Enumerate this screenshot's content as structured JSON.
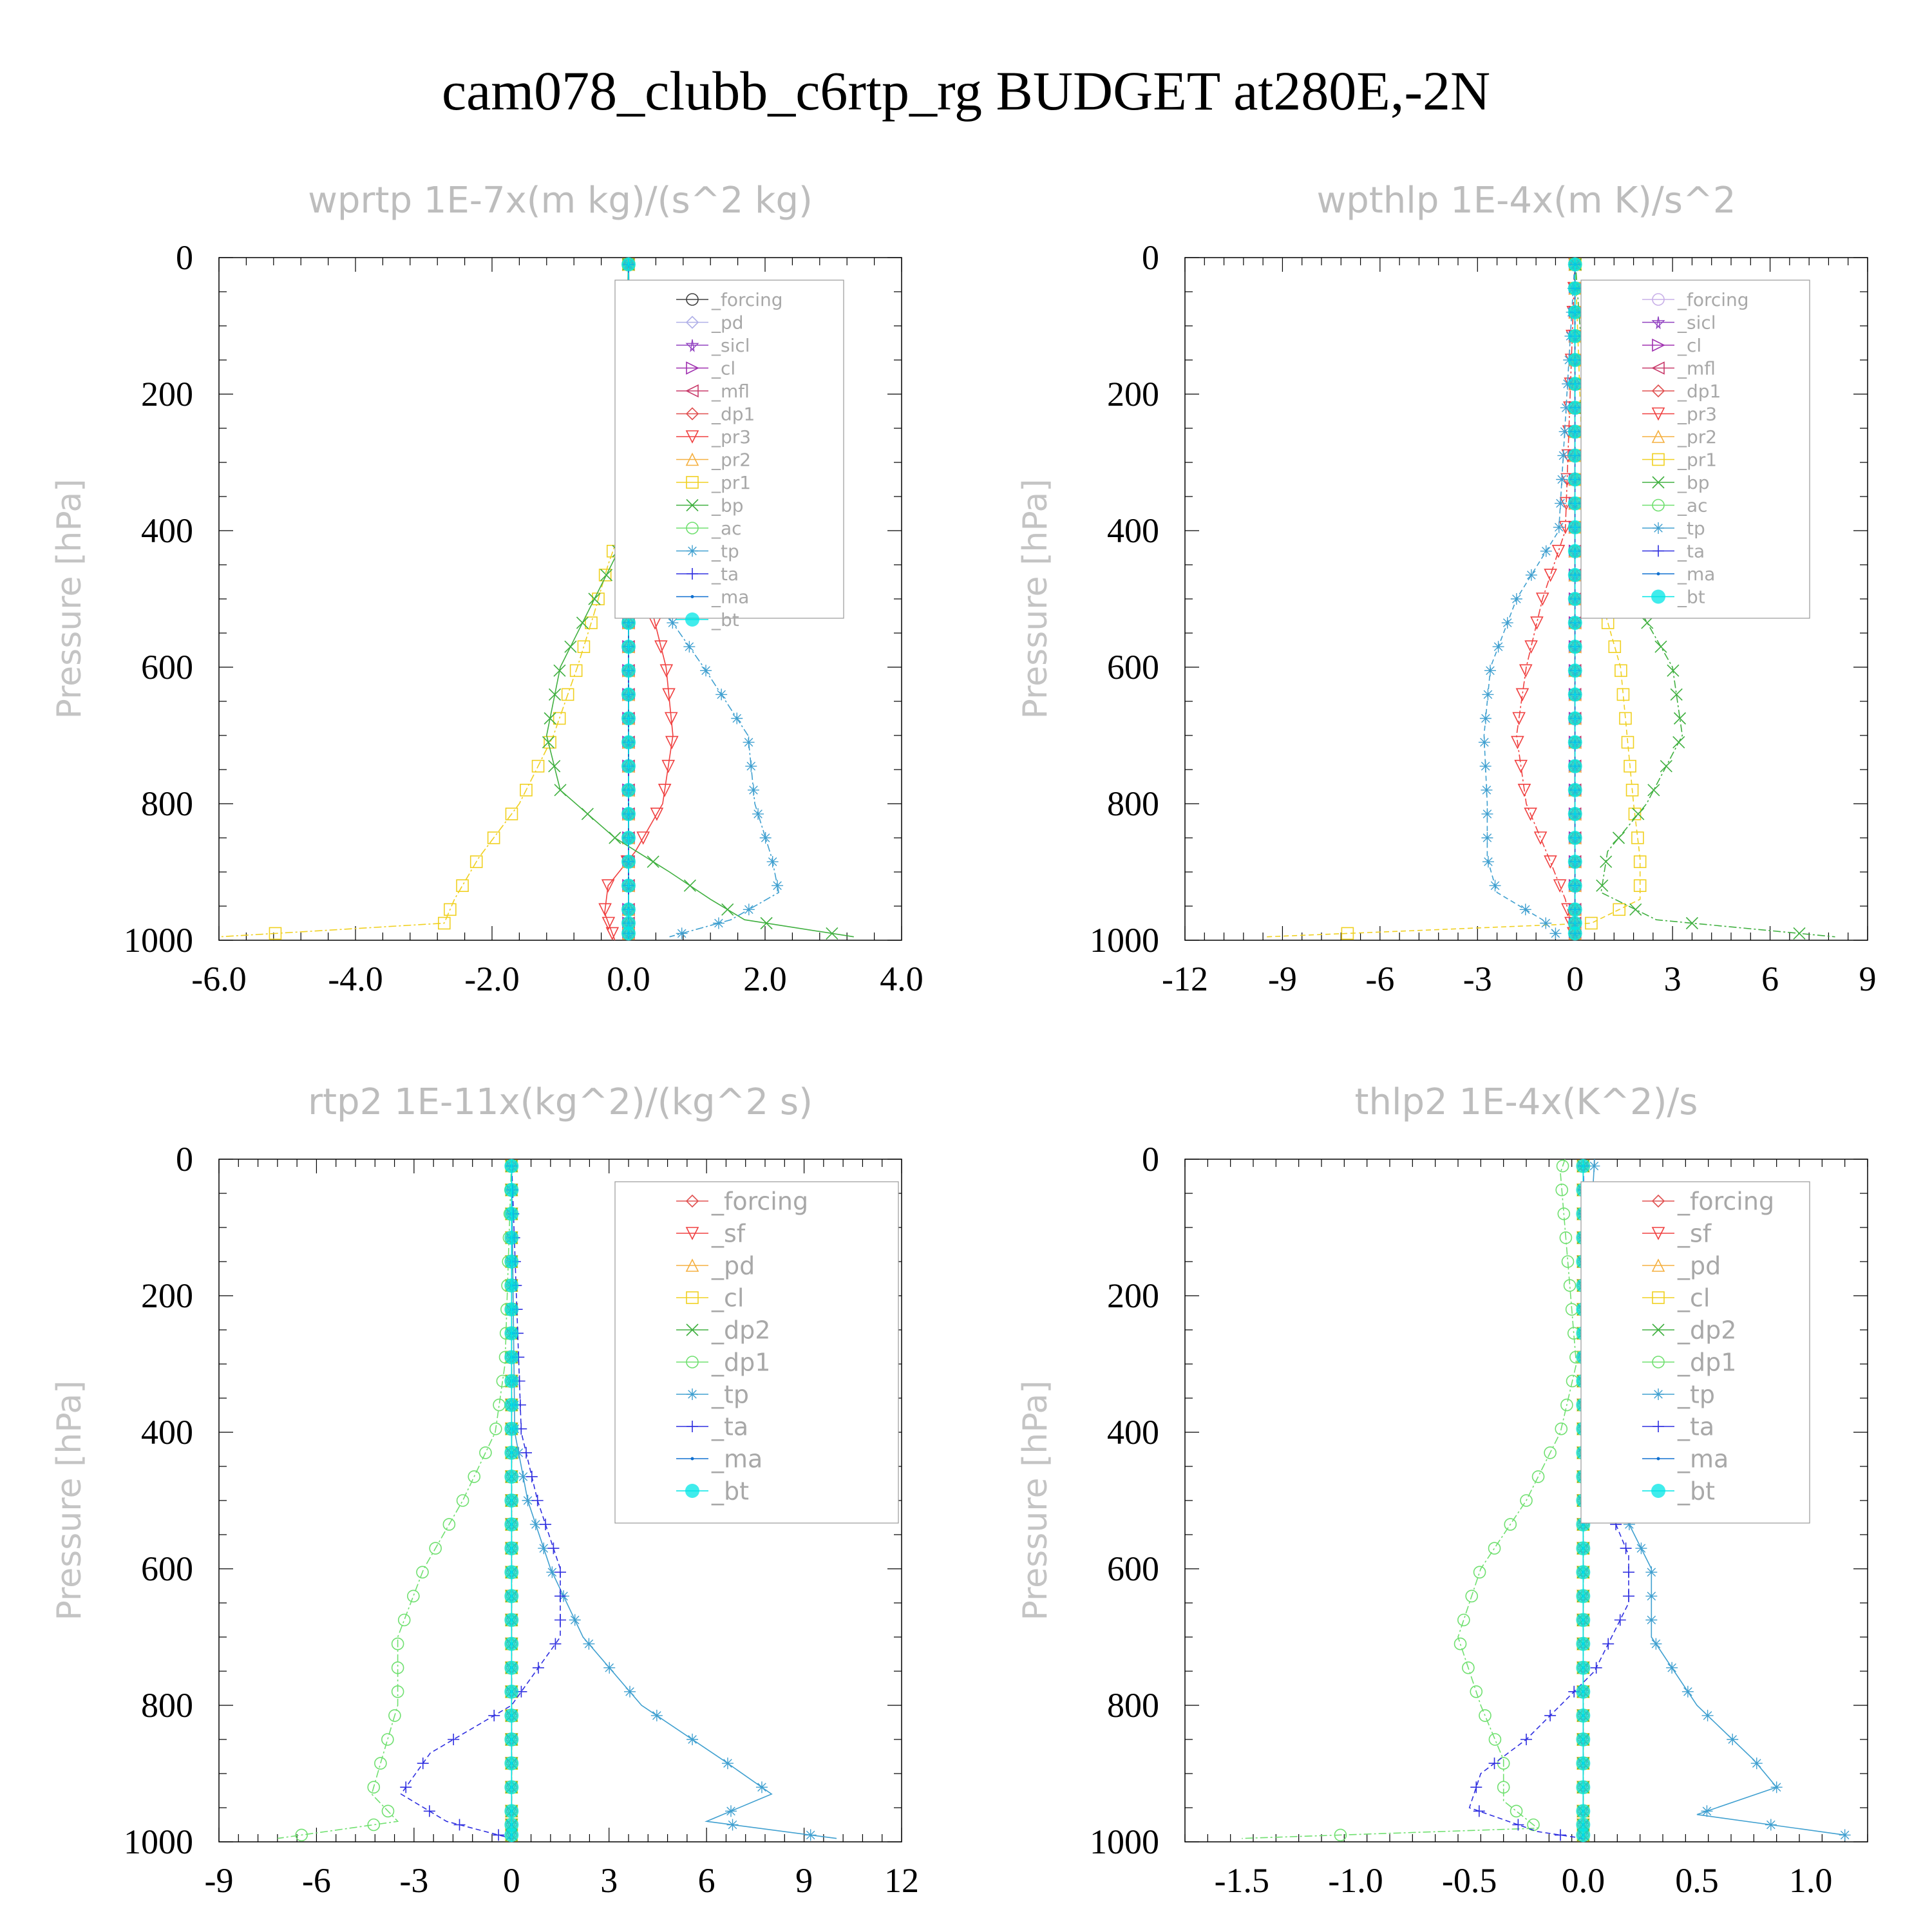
{
  "title": "cam078_clubb_c6rtp_rg  BUDGET at280E,-2N",
  "chart_data": [
    {
      "type": "line",
      "title": "wprtp  1E-7x(m kg)/(s^2 kg)",
      "ylabel": "Pressure [hPa]",
      "xlim": [
        -6.0,
        4.0
      ],
      "ylim": [
        1000,
        0
      ],
      "xticks": [
        "-6.0",
        "-4.0",
        "-2.0",
        "0.0",
        "2.0",
        "4.0"
      ],
      "xtick_values": [
        -6,
        -4,
        -2,
        0,
        2,
        4
      ],
      "yticks": [
        "0",
        "200",
        "400",
        "600",
        "800",
        "1000"
      ],
      "ytick_values": [
        0,
        200,
        400,
        600,
        800,
        1000
      ],
      "legend": "top-right",
      "series": [
        {
          "name": "_forcing",
          "color": "#404040",
          "marker": "circle",
          "p": [
            0,
            1000
          ],
          "v": [
            0,
            0
          ]
        },
        {
          "name": "_pd",
          "color": "#b0b0e8",
          "marker": "diamond",
          "p": [
            0,
            1000
          ],
          "v": [
            0,
            0
          ]
        },
        {
          "name": "_sicl",
          "color": "#9040c0",
          "marker": "star",
          "p": [
            0,
            1000
          ],
          "v": [
            0,
            0
          ]
        },
        {
          "name": "_cl",
          "color": "#a030b0",
          "marker": "tri-right",
          "p": [
            0,
            1000
          ],
          "v": [
            0,
            0
          ]
        },
        {
          "name": "_mfl",
          "color": "#c83a6a",
          "marker": "tri-left",
          "p": [
            0,
            1000
          ],
          "v": [
            0,
            0
          ]
        },
        {
          "name": "_dp1",
          "color": "#e05050",
          "marker": "diamond",
          "p": [
            0,
            1000
          ],
          "v": [
            0,
            0
          ]
        },
        {
          "name": "_pr3",
          "color": "#f04040",
          "marker": "tri-down",
          "p": [
            0,
            400,
            500,
            600,
            700,
            800,
            870,
            920,
            960,
            1000
          ],
          "v": [
            0,
            0.05,
            0.3,
            0.55,
            0.65,
            0.5,
            0.1,
            -0.3,
            -0.35,
            -0.2
          ]
        },
        {
          "name": "_pr2",
          "color": "#f5b040",
          "marker": "tri-up",
          "p": [
            0,
            1000
          ],
          "v": [
            0,
            0
          ]
        },
        {
          "name": "_pr1",
          "color": "#f0d020",
          "marker": "square",
          "p": [
            0,
            380,
            450,
            520,
            600,
            700,
            800,
            880,
            940,
            975,
            995
          ],
          "v": [
            0,
            -0.05,
            -0.3,
            -0.5,
            -0.75,
            -1.1,
            -1.6,
            -2.2,
            -2.55,
            -2.7,
            -6.0
          ]
        },
        {
          "name": "_bp",
          "color": "#40b040",
          "marker": "x",
          "p": [
            0,
            420,
            500,
            600,
            700,
            780,
            850,
            900,
            940,
            970,
            995
          ],
          "v": [
            0,
            -0.1,
            -0.5,
            -1.0,
            -1.2,
            -1.0,
            -0.2,
            0.6,
            1.2,
            1.7,
            3.3
          ]
        },
        {
          "name": "_ac",
          "color": "#70e070",
          "marker": "circle",
          "p": [
            0,
            1000
          ],
          "v": [
            0,
            0
          ]
        },
        {
          "name": "_tp",
          "color": "#40a0d0",
          "marker": "asterisk",
          "p": [
            0,
            420,
            500,
            600,
            700,
            800,
            880,
            930,
            970,
            995
          ],
          "v": [
            0,
            0.05,
            0.4,
            1.1,
            1.75,
            1.85,
            2.1,
            2.2,
            1.5,
            0.6
          ]
        },
        {
          "name": "_ta",
          "color": "#3030e0",
          "marker": "plus",
          "p": [
            0,
            1000
          ],
          "v": [
            0,
            0
          ]
        },
        {
          "name": "_ma",
          "color": "#1070d0",
          "marker": "dot",
          "p": [
            0,
            1000
          ],
          "v": [
            0,
            0
          ]
        },
        {
          "name": "_bt",
          "color": "#00e5e5",
          "marker": "filled-circle",
          "p": [
            0,
            1000
          ],
          "v": [
            0,
            0
          ]
        }
      ]
    },
    {
      "type": "line",
      "title": "wpthlp  1E-4x(m K)/s^2",
      "ylabel": "Pressure [hPa]",
      "xlim": [
        -12,
        9
      ],
      "ylim": [
        1000,
        0
      ],
      "xticks": [
        "-12",
        "-9",
        "-6",
        "-3",
        "0",
        "3",
        "6",
        "9"
      ],
      "xtick_values": [
        -12,
        -9,
        -6,
        -3,
        0,
        3,
        6,
        9
      ],
      "yticks": [
        "0",
        "200",
        "400",
        "600",
        "800",
        "1000"
      ],
      "ytick_values": [
        0,
        200,
        400,
        600,
        800,
        1000
      ],
      "legend": "top-right",
      "series": [
        {
          "name": "_forcing",
          "color": "#c8b0e8",
          "marker": "circle",
          "p": [
            0,
            1000
          ],
          "v": [
            0,
            0
          ]
        },
        {
          "name": "_sicl",
          "color": "#9040c0",
          "marker": "star",
          "p": [
            0,
            1000
          ],
          "v": [
            0,
            0
          ]
        },
        {
          "name": "_cl",
          "color": "#a030b0",
          "marker": "tri-right",
          "p": [
            0,
            1000
          ],
          "v": [
            0,
            0
          ]
        },
        {
          "name": "_mfl",
          "color": "#c83a6a",
          "marker": "tri-left",
          "p": [
            0,
            1000
          ],
          "v": [
            0,
            0
          ]
        },
        {
          "name": "_dp1",
          "color": "#e05050",
          "marker": "diamond",
          "p": [
            0,
            1000
          ],
          "v": [
            0,
            0
          ]
        },
        {
          "name": "_pr3",
          "color": "#f04040",
          "marker": "tri-down",
          "p": [
            0,
            400,
            500,
            600,
            700,
            800,
            880,
            940,
            980,
            1000
          ],
          "v": [
            0,
            -0.3,
            -1.0,
            -1.5,
            -1.8,
            -1.5,
            -0.8,
            -0.3,
            -0.1,
            0
          ]
        },
        {
          "name": "_pr2",
          "color": "#f5b040",
          "marker": "tri-up",
          "p": [
            0,
            1000
          ],
          "v": [
            0,
            0
          ]
        },
        {
          "name": "_pr1",
          "color": "#f0d020",
          "marker": "square",
          "p": [
            0,
            400,
            500,
            600,
            700,
            800,
            880,
            940,
            975,
            995
          ],
          "v": [
            0,
            0.3,
            0.8,
            1.4,
            1.6,
            1.8,
            2.0,
            2.0,
            0.5,
            -9.5
          ]
        },
        {
          "name": "_bp",
          "color": "#40b040",
          "marker": "x",
          "p": [
            0,
            400,
            500,
            600,
            700,
            800,
            870,
            930,
            970,
            995
          ],
          "v": [
            0,
            0.6,
            1.8,
            3.0,
            3.3,
            2.2,
            1.0,
            0.8,
            2.5,
            8.0
          ]
        },
        {
          "name": "_ac",
          "color": "#70e070",
          "marker": "circle",
          "p": [
            0,
            1000
          ],
          "v": [
            0,
            0
          ]
        },
        {
          "name": "_tp",
          "color": "#40a0d0",
          "marker": "asterisk",
          "p": [
            0,
            400,
            500,
            600,
            700,
            800,
            880,
            930,
            970,
            995
          ],
          "v": [
            0,
            -0.5,
            -1.8,
            -2.6,
            -2.8,
            -2.7,
            -2.7,
            -2.4,
            -1.0,
            -0.5
          ]
        },
        {
          "name": "_ta",
          "color": "#3030e0",
          "marker": "plus",
          "p": [
            0,
            1000
          ],
          "v": [
            0,
            0
          ]
        },
        {
          "name": "_ma",
          "color": "#1070d0",
          "marker": "dot",
          "p": [
            0,
            1000
          ],
          "v": [
            0,
            0
          ]
        },
        {
          "name": "_bt",
          "color": "#00e5e5",
          "marker": "filled-circle",
          "p": [
            0,
            1000
          ],
          "v": [
            0,
            0
          ]
        }
      ]
    },
    {
      "type": "line",
      "title": "rtp2  1E-11x(kg^2)/(kg^2 s)",
      "ylabel": "Pressure [hPa]",
      "xlim": [
        -9,
        12
      ],
      "ylim": [
        1000,
        0
      ],
      "xticks": [
        "-9",
        "-6",
        "-3",
        "0",
        "3",
        "6",
        "9",
        "12"
      ],
      "xtick_values": [
        -9,
        -6,
        -3,
        0,
        3,
        6,
        9,
        12
      ],
      "yticks": [
        "0",
        "200",
        "400",
        "600",
        "800",
        "1000"
      ],
      "ytick_values": [
        0,
        200,
        400,
        600,
        800,
        1000
      ],
      "legend": "top-right",
      "series": [
        {
          "name": "_forcing",
          "color": "#e05050",
          "marker": "diamond",
          "p": [
            0,
            1000
          ],
          "v": [
            0,
            0
          ]
        },
        {
          "name": "_sf",
          "color": "#f04040",
          "marker": "tri-down",
          "p": [
            0,
            1000
          ],
          "v": [
            0,
            0
          ]
        },
        {
          "name": "_pd",
          "color": "#f5b040",
          "marker": "tri-up",
          "p": [
            0,
            1000
          ],
          "v": [
            0,
            0
          ]
        },
        {
          "name": "_cl",
          "color": "#f0d020",
          "marker": "square",
          "p": [
            0,
            1000
          ],
          "v": [
            0,
            0
          ]
        },
        {
          "name": "_dp2",
          "color": "#40b040",
          "marker": "x",
          "p": [
            0,
            1000
          ],
          "v": [
            0,
            0
          ]
        },
        {
          "name": "_dp1",
          "color": "#70e070",
          "marker": "circle",
          "p": [
            0,
            300,
            400,
            500,
            600,
            700,
            800,
            880,
            930,
            970,
            995
          ],
          "v": [
            0,
            -0.2,
            -0.5,
            -1.5,
            -2.7,
            -3.5,
            -3.5,
            -4.0,
            -4.3,
            -3.5,
            -7.2
          ]
        },
        {
          "name": "_tp",
          "color": "#40a0d0",
          "marker": "asterisk",
          "p": [
            0,
            400,
            500,
            600,
            700,
            800,
            880,
            930,
            970,
            995
          ],
          "v": [
            0,
            0.1,
            0.5,
            1.2,
            2.2,
            4.0,
            6.5,
            8.0,
            6.0,
            10.0
          ]
        },
        {
          "name": "_ta",
          "color": "#3030e0",
          "marker": "plus",
          "p": [
            0,
            400,
            500,
            600,
            700,
            800,
            870,
            930,
            970,
            995
          ],
          "v": [
            0,
            0.3,
            0.8,
            1.5,
            1.5,
            0,
            -2.5,
            -3.4,
            -2.0,
            0
          ]
        },
        {
          "name": "_ma",
          "color": "#1070d0",
          "marker": "dot",
          "p": [
            0,
            1000
          ],
          "v": [
            0,
            0
          ]
        },
        {
          "name": "_bt",
          "color": "#00e5e5",
          "marker": "filled-circle",
          "p": [
            0,
            1000
          ],
          "v": [
            0,
            0
          ]
        }
      ]
    },
    {
      "type": "line",
      "title": "thlp2  1E-4x(K^2)/s",
      "ylabel": "Pressure [hPa]",
      "xlim": [
        -1.75,
        1.25
      ],
      "ylim": [
        1000,
        0
      ],
      "xticks": [
        "-1.5",
        "-1.0",
        "-0.5",
        "0.0",
        "0.5",
        "1.0"
      ],
      "xtick_values": [
        -1.5,
        -1.0,
        -0.5,
        0.0,
        0.5,
        1.0
      ],
      "yticks": [
        "0",
        "200",
        "400",
        "600",
        "800",
        "1000"
      ],
      "ytick_values": [
        0,
        200,
        400,
        600,
        800,
        1000
      ],
      "legend": "top-right",
      "series": [
        {
          "name": "_forcing",
          "color": "#e05050",
          "marker": "diamond",
          "p": [
            0,
            1000
          ],
          "v": [
            0,
            0
          ]
        },
        {
          "name": "_sf",
          "color": "#f04040",
          "marker": "tri-down",
          "p": [
            0,
            1000
          ],
          "v": [
            0,
            0
          ]
        },
        {
          "name": "_pd",
          "color": "#f5b040",
          "marker": "tri-up",
          "p": [
            0,
            1000
          ],
          "v": [
            0,
            0
          ]
        },
        {
          "name": "_cl",
          "color": "#f0d020",
          "marker": "square",
          "p": [
            0,
            1000
          ],
          "v": [
            0,
            0
          ]
        },
        {
          "name": "_dp2",
          "color": "#40b040",
          "marker": "x",
          "p": [
            0,
            1000
          ],
          "v": [
            0,
            0
          ]
        },
        {
          "name": "_dp1",
          "color": "#70e070",
          "marker": "circle",
          "p": [
            0,
            20,
            300,
            400,
            500,
            600,
            700,
            800,
            880,
            940,
            980,
            995
          ],
          "v": [
            -0.08,
            -0.1,
            -0.03,
            -0.1,
            -0.25,
            -0.45,
            -0.55,
            -0.45,
            -0.35,
            -0.35,
            -0.2,
            -1.5
          ]
        },
        {
          "name": "_tp",
          "color": "#40a0d0",
          "marker": "asterisk",
          "p": [
            0,
            300,
            400,
            500,
            600,
            700,
            800,
            880,
            920,
            960,
            990
          ],
          "v": [
            0.05,
            0,
            0.05,
            0.15,
            0.3,
            0.3,
            0.5,
            0.75,
            0.85,
            0.5,
            1.15
          ]
        },
        {
          "name": "_ta",
          "color": "#3030e0",
          "marker": "plus",
          "p": [
            0,
            300,
            400,
            500,
            580,
            650,
            750,
            850,
            900,
            950,
            985,
            995
          ],
          "v": [
            0,
            0.02,
            0.05,
            0.1,
            0.2,
            0.2,
            0.05,
            -0.25,
            -0.45,
            -0.5,
            -0.2,
            0
          ]
        },
        {
          "name": "_ma",
          "color": "#1070d0",
          "marker": "dot",
          "p": [
            0,
            1000
          ],
          "v": [
            0,
            0
          ]
        },
        {
          "name": "_bt",
          "color": "#00e5e5",
          "marker": "filled-circle",
          "p": [
            0,
            1000
          ],
          "v": [
            0,
            0
          ]
        }
      ]
    }
  ]
}
